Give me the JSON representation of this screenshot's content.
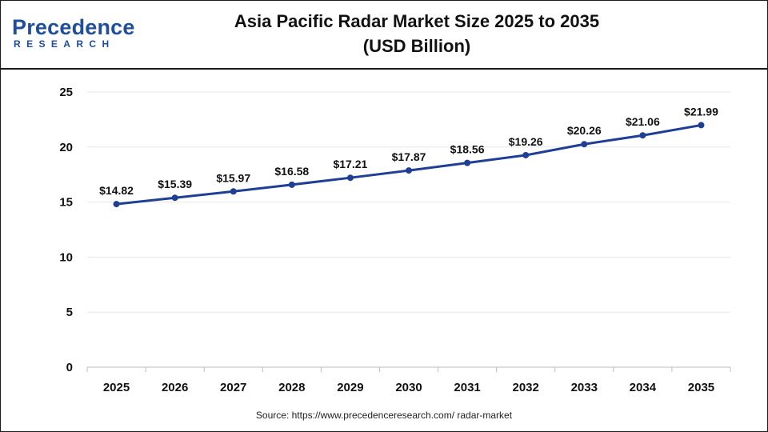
{
  "brand": {
    "name": "Precedence",
    "sub": "RESEARCH",
    "color": "#1f4e9c"
  },
  "chart_data": {
    "type": "line",
    "title_line1": "Asia Pacific Radar Market Size 2025 to 2035",
    "title_line2": "(USD Billion)",
    "xlabel": "",
    "ylabel": "",
    "categories": [
      "2025",
      "2026",
      "2027",
      "2028",
      "2029",
      "2030",
      "2031",
      "2032",
      "2033",
      "2034",
      "2035"
    ],
    "series": [
      {
        "values": [
          14.82,
          15.39,
          15.97,
          16.58,
          17.21,
          17.87,
          18.56,
          19.26,
          20.26,
          21.06,
          21.99
        ],
        "labels": [
          "$14.82",
          "$15.39",
          "$15.97",
          "$16.58",
          "$17.21",
          "$17.87",
          "$18.56",
          "$19.26",
          "$20.26",
          "$21.06",
          "$21.99"
        ],
        "color": "#1f3f94"
      }
    ],
    "ylim": [
      0,
      25
    ],
    "yticks": [
      0,
      5,
      10,
      15,
      20,
      25
    ],
    "grid": true
  },
  "source_text": "Source: https://www.precedenceresearch.com/ radar-market"
}
